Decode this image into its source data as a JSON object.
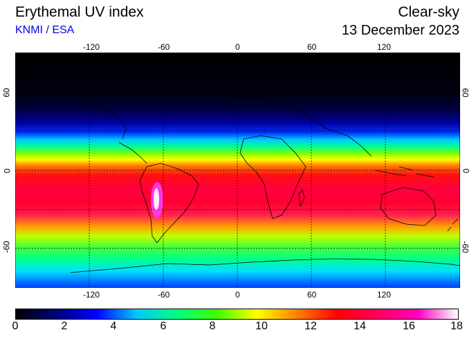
{
  "header": {
    "title": "Erythemal UV index",
    "credit": "KNMI / ESA",
    "condition": "Clear-sky",
    "date": "13 December 2023"
  },
  "map": {
    "lon_ticks": [
      "-120",
      "-60",
      "0",
      "60",
      "120"
    ],
    "lat_ticks": [
      "60",
      "0",
      "-60"
    ]
  },
  "colorbar": {
    "labels": [
      "0",
      "2",
      "4",
      "6",
      "8",
      "10",
      "12",
      "14",
      "16",
      "18"
    ],
    "colors": [
      "#000000",
      "#00007a",
      "#0000ff",
      "#00c8ff",
      "#00ff80",
      "#40ff00",
      "#ffff00",
      "#ff8000",
      "#ff0000",
      "#ff0060",
      "#ff00c0",
      "#ffffff"
    ]
  }
}
